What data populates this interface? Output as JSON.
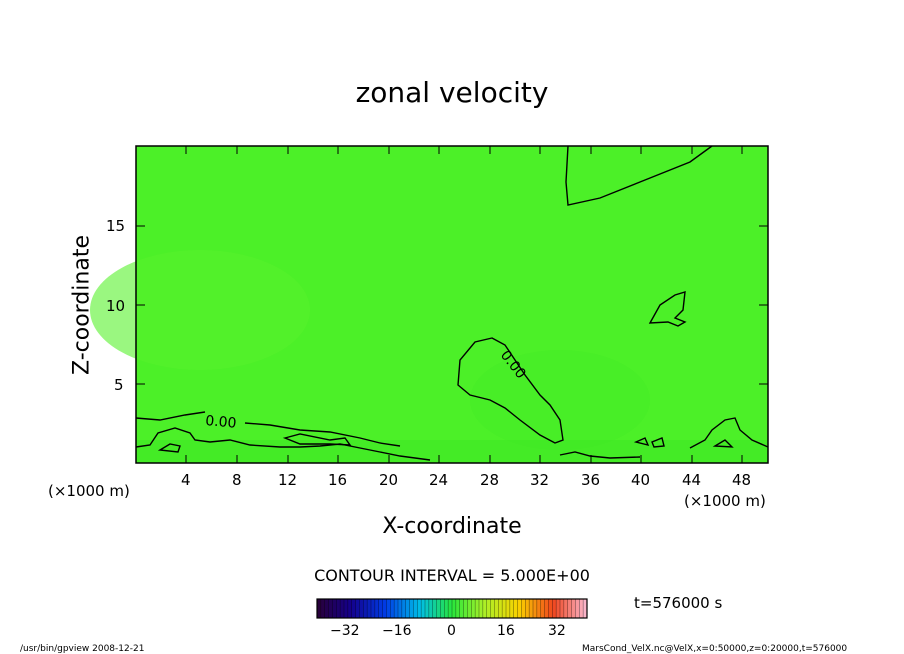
{
  "title": "zonal velocity",
  "chart_data": {
    "type": "contour",
    "title": "zonal velocity",
    "xlabel": "X-coordinate",
    "ylabel": "Z-coordinate",
    "x_unit": "(×1000 m)",
    "xlim": [
      0,
      50
    ],
    "ylim": [
      0,
      20
    ],
    "x_ticks": [
      "4",
      "8",
      "12",
      "16",
      "20",
      "24",
      "28",
      "32",
      "36",
      "40",
      "44",
      "48"
    ],
    "y_ticks": [
      "5",
      "10",
      "15"
    ],
    "contour_interval": "CONTOUR INTERVAL = 5.000E+00",
    "contour_labels": [
      "0.00",
      "0.00"
    ],
    "colorbar_ticks": [
      "−32",
      "−16",
      "0",
      "16",
      "32"
    ],
    "colorbar_range": [
      -35,
      35
    ],
    "field_color": "#4cf028",
    "time_label": "t=576000 s"
  },
  "footer": {
    "left": "/usr/bin/gpview   2008-12-21",
    "right": "MarsCond_VelX.nc@VelX,x=0:50000,z=0:20000,t=576000"
  }
}
